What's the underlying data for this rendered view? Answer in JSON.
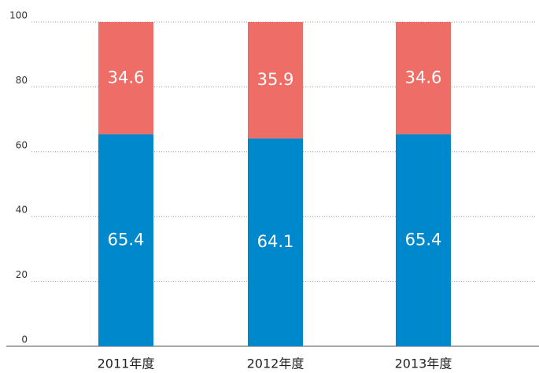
{
  "chart_data": {
    "type": "stacked_bar",
    "categories": [
      "2011年度",
      "2012年度",
      "2013年度"
    ],
    "series": [
      {
        "name": "blue",
        "color": "#0088cc",
        "values": [
          65.4,
          64.1,
          65.4
        ]
      },
      {
        "name": "red",
        "color": "#ee6e67",
        "values": [
          34.6,
          35.9,
          34.6
        ]
      }
    ],
    "ylim": [
      0,
      100
    ],
    "yticks": [
      0,
      20,
      40,
      60,
      80,
      100
    ],
    "grid": true
  }
}
